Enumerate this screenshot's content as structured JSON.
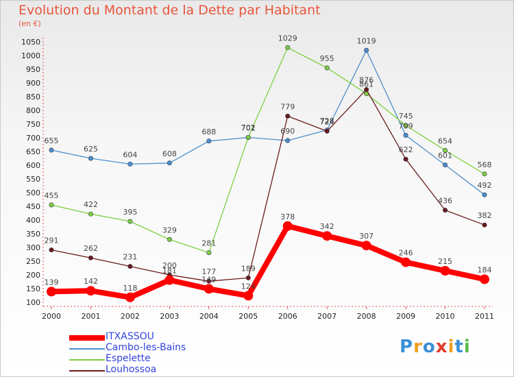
{
  "title": "Evolution du Montant de la Dette par Habitant",
  "subtitle": "(en €)",
  "logo": {
    "letters": [
      "P",
      "r",
      "o",
      "x",
      "i",
      "t",
      "i"
    ],
    "colors": [
      "#3a8fd8",
      "#f0a020",
      "#3a8fd8",
      "#e23b2a",
      "#f0a020",
      "#3a8fd8",
      "#59b94a"
    ]
  },
  "chart_data": {
    "type": "line",
    "title": "Evolution du Montant de la Dette par Habitant",
    "subtitle": "(en €)",
    "x": [
      "2000",
      "2001",
      "2002",
      "2003",
      "2004",
      "2005",
      "2006",
      "2007",
      "2008",
      "2009",
      "2010",
      "2011"
    ],
    "y_ticks": [
      "100",
      "150",
      "200",
      "250",
      "300",
      "350",
      "400",
      "450",
      "500",
      "550",
      "600",
      "650",
      "700",
      "750",
      "800",
      "850",
      "900",
      "950",
      "1000",
      "1050"
    ],
    "ylim": [
      100,
      1050
    ],
    "grid": false,
    "legend_position": "bottom-left",
    "series": [
      {
        "name": "ITXASSOU",
        "color": "#ff0000",
        "values": [
          139,
          142,
          118,
          181,
          149,
          124,
          378,
          342,
          307,
          246,
          215,
          184
        ],
        "labels": [
          "139",
          "142",
          "118",
          "181",
          "149",
          "124",
          "378",
          "342",
          "307",
          "246",
          "215",
          "184"
        ],
        "label_offsets": [
          -10,
          -10,
          -10,
          -10,
          -10,
          -10,
          -10,
          -10,
          -10,
          -10,
          -10,
          -10
        ]
      },
      {
        "name": "Cambo-les-Bains",
        "color": "#4a90cc",
        "values": [
          655,
          625,
          604,
          608,
          688,
          701,
          690,
          728,
          1019,
          709,
          601,
          492
        ],
        "labels": [
          "655",
          "625",
          "604",
          "608",
          "688",
          "701",
          "690",
          "728",
          "1019",
          "709",
          "601",
          "492"
        ],
        "label_offsets": [
          -10,
          -10,
          -10,
          -10,
          -10,
          -10,
          -10,
          -10,
          -10,
          -10,
          -10,
          -10
        ]
      },
      {
        "name": "Espelette",
        "color": "#7ecf3f",
        "values": [
          455,
          422,
          395,
          329,
          281,
          702,
          1029,
          955,
          861,
          745,
          654,
          568
        ],
        "labels": [
          "455",
          "422",
          "395",
          "329",
          "281",
          "702",
          "1029",
          "955",
          "861",
          "745",
          "654",
          "568"
        ],
        "label_offsets": [
          -10,
          -10,
          -10,
          -10,
          -10,
          -10,
          -10,
          -10,
          -10,
          -10,
          -10,
          -10
        ]
      },
      {
        "name": "Louhossoa",
        "color": "#6b1a1a",
        "values": [
          291,
          262,
          231,
          200,
          177,
          189,
          779,
          724,
          876,
          622,
          436,
          382
        ],
        "labels": [
          "291",
          "262",
          "231",
          "200",
          "177",
          "189",
          "779",
          "724",
          "876",
          "622",
          "436",
          "382"
        ],
        "label_offsets": [
          -10,
          -10,
          -10,
          -10,
          -10,
          -10,
          -10,
          -10,
          -10,
          -10,
          -10,
          -10
        ]
      }
    ]
  }
}
